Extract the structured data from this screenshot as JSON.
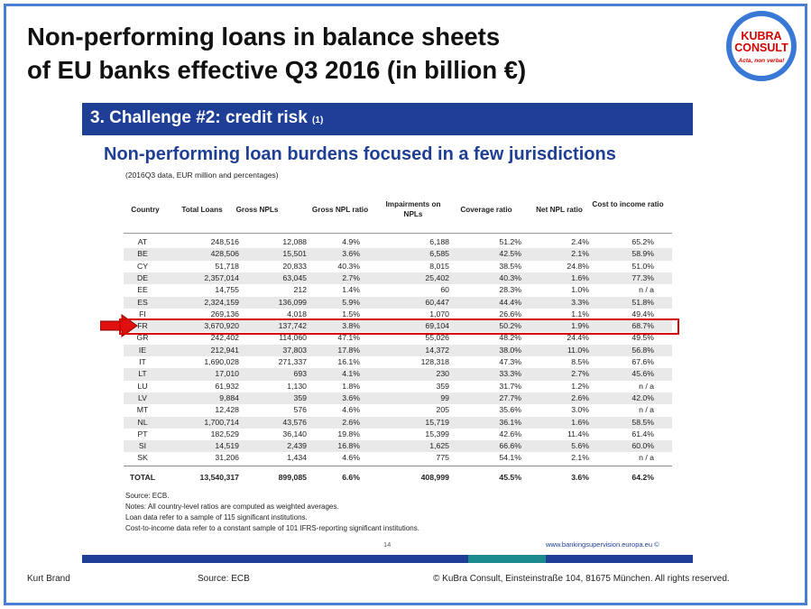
{
  "title_line1": "Non-performing loans in balance sheets",
  "title_line2": "of EU banks effective Q3 2016 (in billion €)",
  "logo": {
    "line1": "KUBRA",
    "line2": "CONSULT",
    "tagline": "Acta, non verba!"
  },
  "slide": {
    "header": "3. Challenge #2: credit risk",
    "header_sub": "(1)",
    "subtitle": "Non-performing loan burdens focused in a few jurisdictions",
    "note": "(2016Q3 data, EUR million and percentages)",
    "columns": [
      "Country",
      "Total Loans",
      "Gross NPLs",
      "Gross NPL ratio",
      "Impairments on NPLs",
      "Coverage ratio",
      "Net NPL ratio",
      "Cost to income ratio"
    ],
    "rows": [
      [
        "AT",
        "248,516",
        "12,088",
        "4.9%",
        "6,188",
        "51.2%",
        "2.4%",
        "65.2%"
      ],
      [
        "BE",
        "428,506",
        "15,501",
        "3.6%",
        "6,585",
        "42.5%",
        "2.1%",
        "58.9%"
      ],
      [
        "CY",
        "51,718",
        "20,833",
        "40.3%",
        "8,015",
        "38.5%",
        "24.8%",
        "51.0%"
      ],
      [
        "DE",
        "2,357,014",
        "63,045",
        "2.7%",
        "25,402",
        "40.3%",
        "1.6%",
        "77.3%"
      ],
      [
        "EE",
        "14,755",
        "212",
        "1.4%",
        "60",
        "28.3%",
        "1.0%",
        "n / a"
      ],
      [
        "ES",
        "2,324,159",
        "136,099",
        "5.9%",
        "60,447",
        "44.4%",
        "3.3%",
        "51.8%"
      ],
      [
        "FI",
        "269,136",
        "4,018",
        "1.5%",
        "1,070",
        "26.6%",
        "1.1%",
        "49.4%"
      ],
      [
        "FR",
        "3,670,920",
        "137,742",
        "3.8%",
        "69,104",
        "50.2%",
        "1.9%",
        "68.7%"
      ],
      [
        "GR",
        "242,402",
        "114,060",
        "47.1%",
        "55,026",
        "48.2%",
        "24.4%",
        "49.5%"
      ],
      [
        "IE",
        "212,941",
        "37,803",
        "17.8%",
        "14,372",
        "38.0%",
        "11.0%",
        "56.8%"
      ],
      [
        "IT",
        "1,690,028",
        "271,337",
        "16.1%",
        "128,318",
        "47.3%",
        "8.5%",
        "67.6%"
      ],
      [
        "LT",
        "17,010",
        "693",
        "4.1%",
        "230",
        "33.3%",
        "2.7%",
        "45.6%"
      ],
      [
        "LU",
        "61,932",
        "1,130",
        "1.8%",
        "359",
        "31.7%",
        "1.2%",
        "n / a"
      ],
      [
        "LV",
        "9,884",
        "359",
        "3.6%",
        "99",
        "27.7%",
        "2.6%",
        "42.0%"
      ],
      [
        "MT",
        "12,428",
        "576",
        "4.6%",
        "205",
        "35.6%",
        "3.0%",
        "n / a"
      ],
      [
        "NL",
        "1,700,714",
        "43,576",
        "2.6%",
        "15,719",
        "36.1%",
        "1.6%",
        "58.5%"
      ],
      [
        "PT",
        "182,529",
        "36,140",
        "19.8%",
        "15,399",
        "42.6%",
        "11.4%",
        "61.4%"
      ],
      [
        "SI",
        "14,519",
        "2,439",
        "16.8%",
        "1,625",
        "66.6%",
        "5.6%",
        "60.0%"
      ],
      [
        "SK",
        "31,206",
        "1,434",
        "4.6%",
        "775",
        "54.1%",
        "2.1%",
        "n / a"
      ]
    ],
    "total": [
      "TOTAL",
      "13,540,317",
      "899,085",
      "6.6%",
      "408,999",
      "45.5%",
      "3.6%",
      "64.2%"
    ],
    "footnotes": [
      "Source: ECB.",
      "Notes: All country-level ratios are computed as weighted averages.",
      "Loan data refer to a sample of 115 significant institutions.",
      "Cost-to-income data refer to a constant sample of 101  IFRS-reporting significant institutions."
    ],
    "page_number": "14",
    "website": "www.bankingsupervision.europa.eu ©",
    "highlight_country": "FR"
  },
  "footer": {
    "author": "Kurt Brand",
    "source": "Source: ECB",
    "copyright": "© KuBra Consult, Einsteinstraße 104, 81675 München. All rights reserved."
  },
  "colors": {
    "frame": "#4a7fd4",
    "slide_header": "#1e3f95",
    "highlight": "#d40000",
    "footbar_teal": "#1b8a8f"
  }
}
